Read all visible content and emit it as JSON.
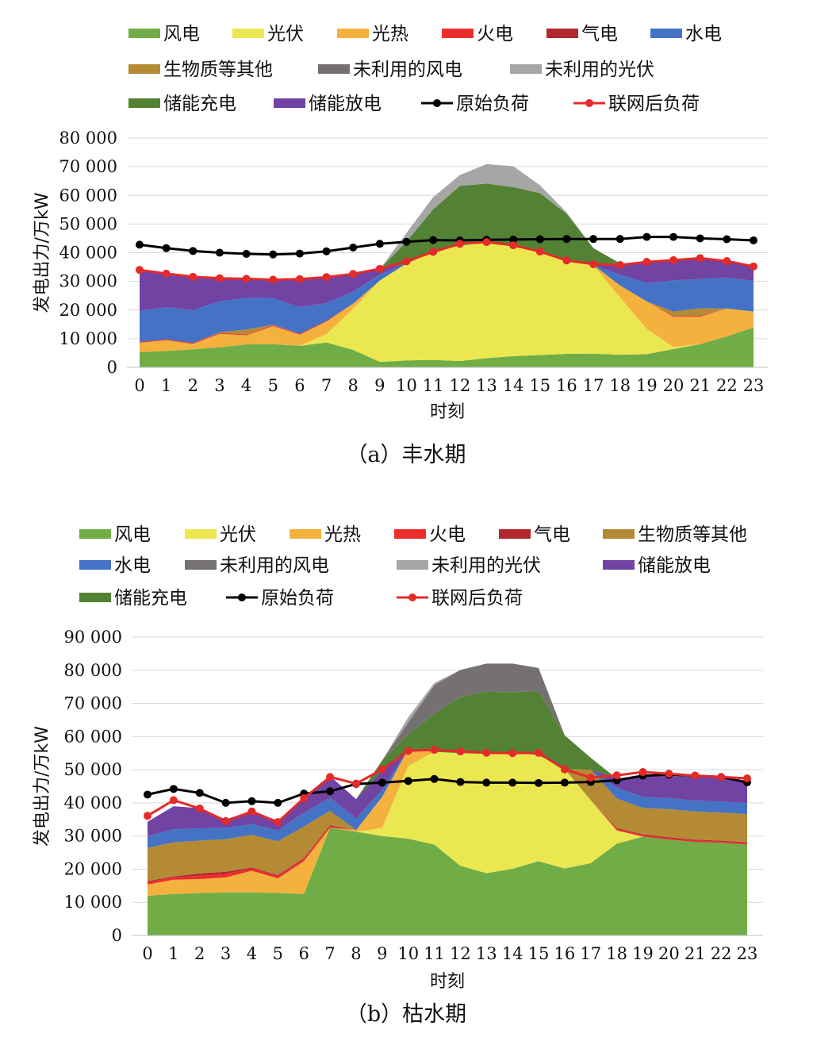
{
  "chart_data": [
    {
      "type": "area",
      "caption": "（a）丰水期",
      "xlabel": "时刻",
      "ylabel": "发电出力/万kW",
      "ylim": [
        0,
        80000
      ],
      "yticks": [
        0,
        10000,
        20000,
        30000,
        40000,
        50000,
        60000,
        70000,
        80000
      ],
      "ytick_labels": [
        "0",
        "10 000",
        "20 000",
        "30 000",
        "40 000",
        "50 000",
        "60 000",
        "70 000",
        "80 000"
      ],
      "x": [
        0,
        1,
        2,
        3,
        4,
        5,
        6,
        7,
        8,
        9,
        10,
        11,
        12,
        13,
        14,
        15,
        16,
        17,
        18,
        19,
        20,
        21,
        22,
        23
      ],
      "legend_position": "top",
      "legend_rows": [
        [
          "风电",
          "光伏",
          "光热",
          "火电",
          "气电",
          "水电"
        ],
        [
          "生物质等其他",
          "未利用的风电",
          "未利用的光伏"
        ],
        [
          "储能充电",
          "储能放电",
          "原始负荷",
          "联网后负荷"
        ]
      ],
      "stacked_series": [
        {
          "name": "风电",
          "color": "#70ad47",
          "values": [
            5300,
            5700,
            6300,
            7000,
            8000,
            8100,
            7500,
            8700,
            6100,
            1900,
            2400,
            2600,
            2200,
            3200,
            3900,
            4300,
            4700,
            4800,
            4400,
            4600,
            6400,
            8100,
            10800,
            13900
          ]
        },
        {
          "name": "光伏",
          "color": "#ebe750",
          "values": [
            0,
            0,
            0,
            0,
            0,
            0,
            0,
            2900,
            14300,
            28400,
            33800,
            37700,
            40300,
            40400,
            38600,
            36200,
            32500,
            30900,
            20000,
            8800,
            700,
            0,
            0,
            0
          ]
        },
        {
          "name": "光热",
          "color": "#f4b13d",
          "values": [
            3300,
            3800,
            1900,
            4700,
            3200,
            6300,
            3900,
            4400,
            1800,
            0,
            0,
            0,
            0,
            0,
            0,
            0,
            0,
            0,
            4200,
            9600,
            10500,
            9600,
            9700,
            5600
          ]
        },
        {
          "name": "火电",
          "color": "#ec2d2d",
          "values": [
            300,
            300,
            300,
            300,
            300,
            300,
            300,
            300,
            0,
            0,
            0,
            0,
            0,
            0,
            0,
            0,
            0,
            0,
            0,
            0,
            300,
            300,
            0,
            0
          ]
        },
        {
          "name": "气电",
          "color": "#b3282e",
          "values": [
            0,
            0,
            0,
            0,
            0,
            0,
            0,
            0,
            0,
            0,
            0,
            0,
            0,
            0,
            0,
            0,
            0,
            0,
            0,
            0,
            0,
            0,
            0,
            0
          ]
        },
        {
          "name": "生物质等其他",
          "color": "#b48a35",
          "values": [
            0,
            0,
            0,
            200,
            1700,
            200,
            0,
            0,
            0,
            0,
            0,
            0,
            0,
            0,
            0,
            0,
            0,
            0,
            0,
            0,
            1600,
            2600,
            0,
            0
          ]
        },
        {
          "name": "水电",
          "color": "#4472c4",
          "values": [
            10800,
            11200,
            11400,
            10900,
            11000,
            9200,
            9300,
            6100,
            4200,
            2100,
            0,
            0,
            0,
            0,
            0,
            0,
            0,
            0,
            3700,
            6400,
            10800,
            10200,
            10800,
            10700
          ]
        },
        {
          "name": "储能放电",
          "color": "#7143a3",
          "values": [
            13800,
            11800,
            11600,
            7900,
            6600,
            6800,
            10000,
            9400,
            6500,
            1900,
            0,
            0,
            0,
            0,
            0,
            0,
            0,
            0,
            4000,
            6900,
            7200,
            7300,
            5800,
            5200
          ]
        },
        {
          "name": "储能充电",
          "color": "#548235",
          "values": [
            0,
            0,
            0,
            0,
            0,
            0,
            0,
            0,
            0,
            0,
            7700,
            14900,
            20800,
            20500,
            20400,
            20300,
            16400,
            5900,
            0,
            0,
            0,
            0,
            0,
            0
          ]
        },
        {
          "name": "未利用的风电",
          "color": "#767171",
          "values": [
            0,
            0,
            0,
            0,
            0,
            0,
            0,
            0,
            0,
            0,
            0,
            0,
            0,
            0,
            0,
            0,
            0,
            0,
            0,
            0,
            0,
            0,
            0,
            0
          ]
        },
        {
          "name": "未利用的光伏",
          "color": "#a6a6a6",
          "values": [
            0,
            0,
            0,
            0,
            0,
            0,
            0,
            0,
            0,
            0,
            3000,
            4200,
            3800,
            6800,
            7300,
            2700,
            500,
            0,
            0,
            0,
            0,
            0,
            0,
            0
          ]
        }
      ],
      "line_series": [
        {
          "name": "原始负荷",
          "color": "#000000",
          "values": [
            42800,
            41600,
            40600,
            40000,
            39600,
            39400,
            39700,
            40500,
            41800,
            43100,
            43800,
            44400,
            44300,
            44500,
            44600,
            44700,
            44800,
            44800,
            44800,
            45500,
            45500,
            45000,
            44700,
            44300
          ]
        },
        {
          "name": "联网后负荷",
          "color": "#e52a2a",
          "values": [
            34000,
            32700,
            31600,
            31100,
            30900,
            30600,
            30800,
            31500,
            32600,
            34400,
            37000,
            40300,
            43100,
            43700,
            42600,
            40400,
            37300,
            36000,
            35700,
            36800,
            37400,
            38100,
            37100,
            35200
          ]
        }
      ]
    },
    {
      "type": "area",
      "caption": "（b）枯水期",
      "xlabel": "时刻",
      "ylabel": "发电出力/万kW",
      "ylim": [
        0,
        90000
      ],
      "yticks": [
        0,
        10000,
        20000,
        30000,
        40000,
        50000,
        60000,
        70000,
        80000,
        90000
      ],
      "ytick_labels": [
        "0",
        "10 000",
        "20 000",
        "30 000",
        "40 000",
        "50 000",
        "60 000",
        "70 000",
        "80 000",
        "90 000"
      ],
      "x": [
        0,
        1,
        2,
        3,
        4,
        5,
        6,
        7,
        8,
        9,
        10,
        11,
        12,
        13,
        14,
        15,
        16,
        17,
        18,
        19,
        20,
        21,
        22,
        23
      ],
      "legend_position": "top",
      "legend_rows": [
        [
          "风电",
          "光伏",
          "光热",
          "火电",
          "气电",
          "生物质等其他"
        ],
        [
          "水电",
          "未利用的风电",
          "未利用的光伏",
          "储能放电"
        ],
        [
          "储能充电",
          "原始负荷",
          "联网后负荷"
        ]
      ],
      "stacked_series": [
        {
          "name": "风电",
          "color": "#70ad47",
          "values": [
            12000,
            12500,
            12800,
            13000,
            13000,
            12800,
            12500,
            32500,
            31300,
            30000,
            29200,
            27400,
            21000,
            18800,
            20100,
            22400,
            20200,
            21800,
            27700,
            29800,
            28900,
            28200,
            27900,
            27400
          ]
        },
        {
          "name": "光伏",
          "color": "#ebe750",
          "values": [
            0,
            0,
            0,
            0,
            0,
            0,
            0,
            0,
            0,
            2400,
            22000,
            28000,
            34000,
            36000,
            35000,
            32000,
            30000,
            19000,
            4000,
            0,
            0,
            0,
            0,
            0
          ]
        },
        {
          "name": "光热",
          "color": "#f4b13d",
          "values": [
            3400,
            4300,
            4200,
            4500,
            6500,
            4400,
            9900,
            0,
            500,
            9400,
            5000,
            0,
            0,
            0,
            0,
            0,
            0,
            0,
            0,
            0,
            0,
            0,
            0,
            0
          ]
        },
        {
          "name": "火电",
          "color": "#ec2d2d",
          "values": [
            700,
            700,
            1000,
            1000,
            700,
            700,
            700,
            500,
            0,
            0,
            0,
            0,
            0,
            0,
            0,
            0,
            0,
            0,
            400,
            400,
            400,
            400,
            400,
            400
          ]
        },
        {
          "name": "气电",
          "color": "#b3282e",
          "values": [
            300,
            300,
            700,
            700,
            300,
            300,
            300,
            300,
            0,
            0,
            0,
            0,
            0,
            0,
            0,
            0,
            0,
            0,
            300,
            300,
            300,
            300,
            300,
            300
          ]
        },
        {
          "name": "生物质等其他",
          "color": "#b48a35",
          "values": [
            10000,
            10300,
            9900,
            9800,
            9900,
            10200,
            9500,
            4300,
            0,
            0,
            0,
            0,
            0,
            0,
            0,
            0,
            0,
            9200,
            8900,
            8000,
            8500,
            8500,
            8500,
            8500
          ]
        },
        {
          "name": "水电",
          "color": "#4472c4",
          "values": [
            3600,
            3900,
            3700,
            3500,
            3200,
            3300,
            4100,
            4000,
            3500,
            2200,
            0,
            0,
            0,
            0,
            0,
            0,
            0,
            0,
            3300,
            3300,
            3300,
            3300,
            3300,
            3300
          ]
        },
        {
          "name": "储能放电",
          "color": "#7143a3",
          "values": [
            4300,
            7000,
            6100,
            2500,
            4000,
            2800,
            4500,
            6500,
            5800,
            5800,
            0,
            0,
            0,
            0,
            0,
            0,
            0,
            0,
            2700,
            6700,
            6700,
            7100,
            7200,
            6600
          ]
        },
        {
          "name": "储能充电",
          "color": "#548235",
          "values": [
            0,
            0,
            0,
            0,
            0,
            0,
            0,
            0,
            0,
            3000,
            4500,
            11400,
            16900,
            18700,
            18300,
            19300,
            10200,
            3600,
            0,
            0,
            0,
            0,
            0,
            0
          ]
        },
        {
          "name": "未利用的风电",
          "color": "#767171",
          "values": [
            0,
            0,
            0,
            0,
            0,
            0,
            0,
            0,
            0,
            0,
            3600,
            8700,
            8200,
            8500,
            8600,
            7000,
            0,
            0,
            0,
            0,
            0,
            0,
            0,
            0
          ]
        },
        {
          "name": "未利用的光伏",
          "color": "#a6a6a6",
          "values": [
            0,
            0,
            0,
            0,
            0,
            0,
            0,
            0,
            0,
            0,
            1500,
            700,
            0,
            0,
            0,
            0,
            0,
            0,
            0,
            0,
            0,
            0,
            0,
            0
          ]
        }
      ],
      "line_series": [
        {
          "name": "原始负荷",
          "color": "#000000",
          "values": [
            42500,
            44200,
            43000,
            40000,
            40500,
            40000,
            42800,
            43500,
            45700,
            46100,
            46600,
            47200,
            46300,
            46100,
            46100,
            46000,
            46100,
            46300,
            46800,
            48200,
            48500,
            48200,
            47800,
            46200
          ]
        },
        {
          "name": "联网后负荷",
          "color": "#e52a2a",
          "values": [
            36100,
            40800,
            38300,
            34500,
            37400,
            34200,
            41400,
            47800,
            45800,
            50100,
            55700,
            56000,
            55500,
            55100,
            55000,
            55100,
            50100,
            47600,
            48300,
            49300,
            48800,
            48200,
            47800,
            47400
          ]
        }
      ]
    }
  ]
}
